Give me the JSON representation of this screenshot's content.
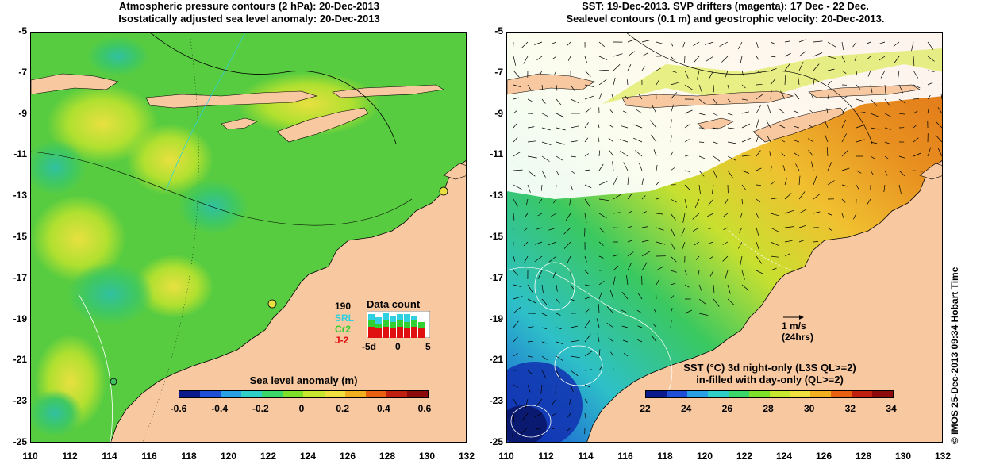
{
  "left_panel": {
    "title_line1": "Atmospheric pressure contours (2 hPa): 20-Dec-2013",
    "title_line2": "Isostatically adjusted sea level anomaly: 20-Dec-2013",
    "colorbar": {
      "label": "Sea level anomaly (m)",
      "ticks": [
        "-0.6",
        "-0.4",
        "-0.2",
        "0",
        "0.2",
        "0.4",
        "0.6"
      ],
      "colors": [
        "#0a1a8c",
        "#1f4fd6",
        "#27a0e6",
        "#2fd0c8",
        "#3ad86a",
        "#7fe02a",
        "#c8e830",
        "#f0e040",
        "#f0b020",
        "#e86010",
        "#c02010",
        "#8c0a0a"
      ]
    },
    "data_count": {
      "title": "Data count",
      "count": "190",
      "satellites": [
        {
          "name": "SRL",
          "color": "#30d0e0"
        },
        {
          "name": "Cr2",
          "color": "#30d030"
        },
        {
          "name": "J-2",
          "color": "#e01010"
        }
      ],
      "axis_labels": [
        "-5d",
        "0",
        "5"
      ]
    }
  },
  "right_panel": {
    "title_line1": "SST: 19-Dec-2013. SVP drifters (magenta): 17 Dec - 22 Dec.",
    "title_line2": "Sealevel contours (0.1 m) and geostrophic velocity: 20-Dec-2013.",
    "velocity_key": {
      "value": "1 m/s",
      "note": "(24hrs)"
    },
    "colorbar": {
      "label_line1": "SST (°C)  3d night-only (L3S QL>=2)",
      "label_line2": "in-filled with day-only (QL>=2)",
      "ticks": [
        "22",
        "24",
        "26",
        "28",
        "30",
        "32",
        "34"
      ],
      "colors": [
        "#0a1a8c",
        "#1f4fd6",
        "#27a0e6",
        "#2fd0c8",
        "#3ad86a",
        "#7fe02a",
        "#c8e830",
        "#f0e040",
        "#f0b020",
        "#e86010",
        "#c02010",
        "#8c0a0a"
      ]
    }
  },
  "axes": {
    "y_ticks": [
      "-5",
      "-7",
      "-9",
      "-11",
      "-13",
      "-15",
      "-17",
      "-19",
      "-21",
      "-23",
      "-25"
    ],
    "x_ticks": [
      "110",
      "112",
      "114",
      "116",
      "118",
      "120",
      "122",
      "124",
      "126",
      "128",
      "130",
      "132"
    ]
  },
  "credit": "© IMOS 25-Dec-2013 09:34 Hobart Time",
  "colors": {
    "land": "#f8c8a0",
    "sea_left": "#58d040",
    "sea_right": "#e8a020"
  }
}
